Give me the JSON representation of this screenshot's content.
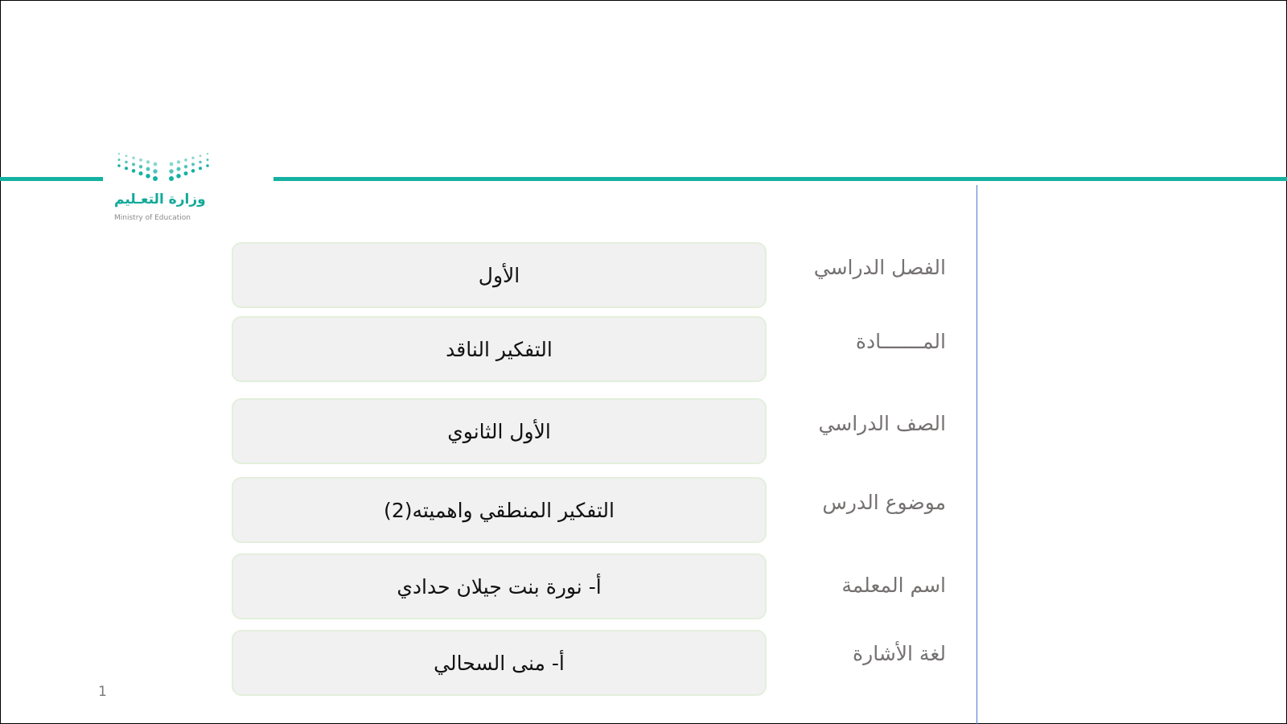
{
  "logo": {
    "text_ar": "وزارة التعـليم",
    "text_en": "Ministry of Education",
    "color": "#14b1a0"
  },
  "rows": [
    {
      "label": "الفصل الدراسي",
      "value": "الأول"
    },
    {
      "label": "المـــــــادة",
      "value": "التفكير الناقد"
    },
    {
      "label": "الصف الدراسي",
      "value": "الأول الثانوي"
    },
    {
      "label": "موضوع الدرس",
      "value": "التفكير المنطقي واهميته(2)"
    },
    {
      "label": "اسم المعلمة",
      "value": "أ- نورة بنت جيلان حدادي"
    },
    {
      "label": "لغة الأشارة",
      "value": "أ- منى السحالي"
    }
  ],
  "page_number": "1"
}
